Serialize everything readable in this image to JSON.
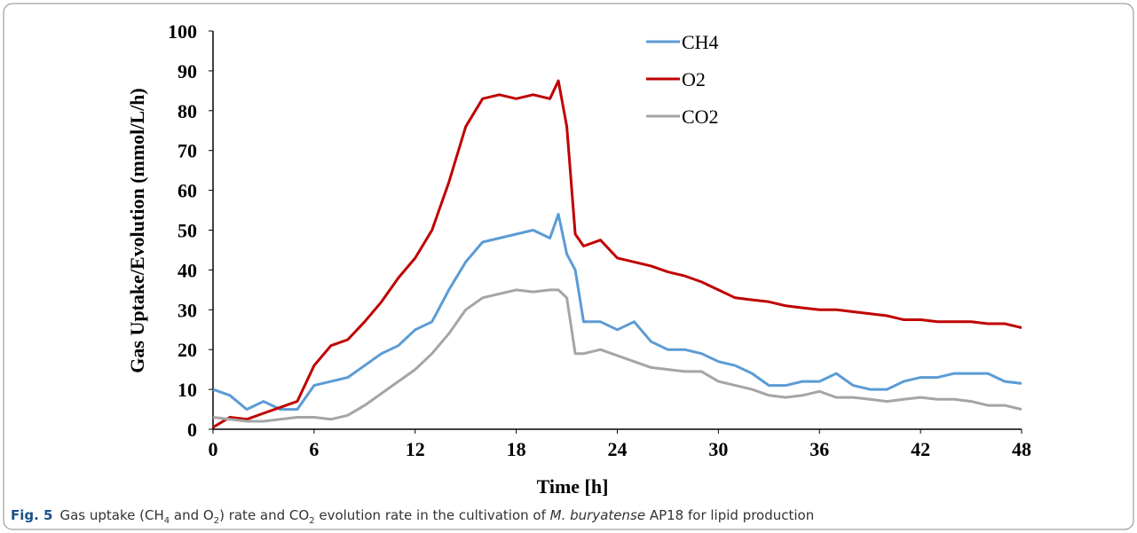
{
  "chart_data": {
    "type": "line",
    "x_label": "Time [h]",
    "y_label": "Gas Uptake/Evolution (mmol/L/h)",
    "x": [
      0,
      1,
      2,
      3,
      4,
      5,
      6,
      7,
      8,
      9,
      10,
      11,
      12,
      13,
      14,
      15,
      16,
      17,
      18,
      19,
      20,
      20.5,
      21,
      21.5,
      22,
      23,
      24,
      25,
      26,
      27,
      28,
      29,
      30,
      31,
      32,
      33,
      34,
      35,
      36,
      37,
      38,
      39,
      40,
      41,
      42,
      43,
      44,
      45,
      46,
      47,
      48
    ],
    "series": [
      {
        "name": "CH4",
        "color": "#5b9bd5",
        "values": [
          10,
          8.5,
          5,
          7,
          5,
          5,
          11,
          12,
          13,
          16,
          19,
          21,
          25,
          27,
          35,
          42,
          47,
          48,
          49,
          50,
          48,
          54,
          44,
          40,
          27,
          27,
          25,
          27,
          22,
          20,
          20,
          19,
          17,
          16,
          14,
          11,
          11,
          12,
          12,
          14,
          11,
          10,
          10,
          12,
          13,
          13,
          14,
          14,
          14,
          12,
          11.5
        ]
      },
      {
        "name": "O2",
        "color": "#c00000",
        "values": [
          0.5,
          3,
          2.5,
          4,
          5.5,
          7,
          16,
          21,
          22.5,
          27,
          32,
          38,
          43,
          50,
          62,
          76,
          83,
          84,
          83,
          84,
          83,
          87.5,
          76,
          49,
          46,
          47.5,
          43,
          42,
          41,
          39.5,
          38.5,
          37,
          35,
          33,
          32.5,
          32,
          31,
          30.5,
          30,
          30,
          29.5,
          29,
          28.5,
          27.5,
          27.5,
          27,
          27,
          27,
          26.5,
          26.5,
          25.5
        ]
      },
      {
        "name": "CO2",
        "color": "#a5a5a5",
        "values": [
          3,
          2.5,
          2,
          2,
          2.5,
          3,
          3,
          2.5,
          3.5,
          6,
          9,
          12,
          15,
          19,
          24,
          30,
          33,
          34,
          35,
          34.5,
          35,
          35,
          33,
          19,
          19,
          20,
          18.5,
          17,
          15.5,
          15,
          14.5,
          14.5,
          12,
          11,
          10,
          8.5,
          8,
          8.5,
          9.5,
          8,
          8,
          7.5,
          7,
          7.5,
          8,
          7.5,
          7.5,
          7,
          6,
          6,
          5
        ]
      }
    ],
    "xlim": [
      0,
      48
    ],
    "xticks": [
      0,
      6,
      12,
      18,
      24,
      30,
      36,
      42,
      48
    ],
    "ylim": [
      0,
      100
    ],
    "yticks": [
      0,
      10,
      20,
      30,
      40,
      50,
      60,
      70,
      80,
      90,
      100
    ],
    "grid": false,
    "legend": "top"
  },
  "caption": {
    "label": "Fig. 5",
    "parts": [
      "Gas uptake (CH",
      "4",
      " and O",
      "2",
      ") rate and CO",
      "2",
      " evolution rate in the cultivation of ",
      "M. buryatense",
      " AP18 for lipid production"
    ]
  }
}
